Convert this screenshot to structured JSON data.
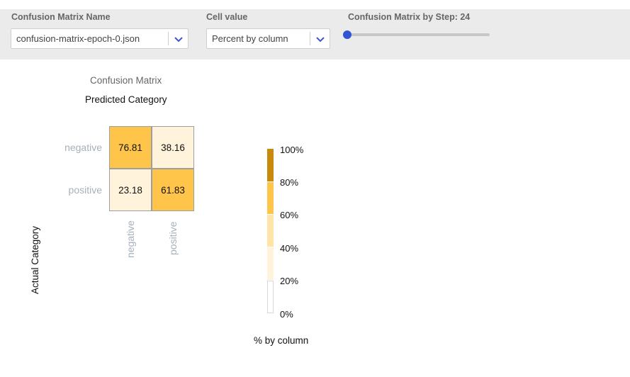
{
  "controls": {
    "matrix_name_label": "Confusion Matrix Name",
    "matrix_name_value": "confusion-matrix-epoch-0.json",
    "cell_value_label": "Cell value",
    "cell_value_value": "Percent by column",
    "step_label": "Confusion Matrix by Step:",
    "step_value": "24",
    "step_slider_fraction": 0.0,
    "accent_color": "#2f55d4"
  },
  "chart_data": {
    "type": "heatmap",
    "title": "Confusion Matrix",
    "xlabel": "Predicted Category",
    "ylabel": "Actual Category",
    "x_categories": [
      "negative",
      "positive"
    ],
    "y_categories": [
      "negative",
      "positive"
    ],
    "values": [
      [
        "76.81",
        "38.16"
      ],
      [
        "23.18",
        "61.83"
      ]
    ],
    "legend": {
      "title": "% by column",
      "ticks": [
        "100%",
        "80%",
        "60%",
        "40%",
        "20%",
        "0%"
      ],
      "colors": [
        "#ffffff",
        "#fff3dc",
        "#ffe4a8",
        "#ffc54a",
        "#c8890c"
      ]
    }
  }
}
